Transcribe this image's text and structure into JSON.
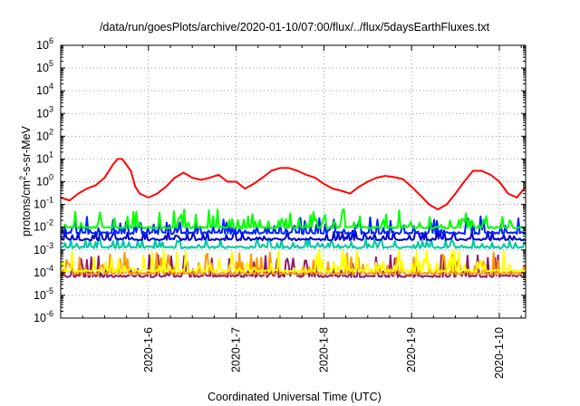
{
  "chart_data": {
    "type": "line",
    "title": "/data/run/goesPlots/archive/2020-01-10/07:00/flux/../flux/5daysEarthFluxes.txt",
    "xlabel": "Coordinated Universal Time (UTC)",
    "ylabel": {
      "prefix": "protons/cm",
      "sup": "2",
      "suffix": "-s-sr-MeV"
    },
    "yscale": "log",
    "ylim_exp": [
      -6,
      6
    ],
    "xlim": [
      0,
      5.3
    ],
    "grid": true,
    "y_ticks": [
      {
        "exp": -6,
        "label_base": "10",
        "label_exp": "-6"
      },
      {
        "exp": -5,
        "label_base": "10",
        "label_exp": "-5"
      },
      {
        "exp": -4,
        "label_base": "10",
        "label_exp": "-4"
      },
      {
        "exp": -3,
        "label_base": "10",
        "label_exp": "-3"
      },
      {
        "exp": -2,
        "label_base": "10",
        "label_exp": "-2"
      },
      {
        "exp": -1,
        "label_base": "10",
        "label_exp": "-1"
      },
      {
        "exp": 0,
        "label_base": "10",
        "label_exp": "0"
      },
      {
        "exp": 1,
        "label_base": "10",
        "label_exp": "1"
      },
      {
        "exp": 2,
        "label_base": "10",
        "label_exp": "2"
      },
      {
        "exp": 3,
        "label_base": "10",
        "label_exp": "3"
      },
      {
        "exp": 4,
        "label_base": "10",
        "label_exp": "4"
      },
      {
        "exp": 5,
        "label_base": "10",
        "label_exp": "5"
      },
      {
        "exp": 6,
        "label_base": "10",
        "label_exp": "6"
      }
    ],
    "x_ticks": [
      {
        "value": 1,
        "label": "2020-1-6"
      },
      {
        "value": 2,
        "label": "2020-1-7"
      },
      {
        "value": 3,
        "label": "2020-1-8"
      },
      {
        "value": 4,
        "label": "2020-1-9"
      },
      {
        "value": 5,
        "label": "2020-1-10"
      }
    ],
    "series": [
      {
        "color": "#ff0000",
        "x": [
          0,
          0.1,
          0.2,
          0.3,
          0.4,
          0.5,
          0.6,
          0.65,
          0.7,
          0.8,
          0.85,
          0.9,
          1.0,
          1.1,
          1.2,
          1.3,
          1.4,
          1.5,
          1.6,
          1.7,
          1.8,
          1.9,
          2.0,
          2.1,
          2.2,
          2.3,
          2.4,
          2.5,
          2.6,
          2.7,
          2.8,
          2.9,
          3.0,
          3.1,
          3.2,
          3.3,
          3.4,
          3.5,
          3.6,
          3.7,
          3.8,
          3.9,
          4.0,
          4.1,
          4.2,
          4.3,
          4.4,
          4.5,
          4.6,
          4.7,
          4.8,
          4.9,
          5.0,
          5.1,
          5.2,
          5.3
        ],
        "y": [
          0.2,
          0.15,
          0.3,
          0.5,
          0.7,
          1.5,
          6,
          10,
          10,
          3,
          0.6,
          0.3,
          0.2,
          0.3,
          0.6,
          1.5,
          2.5,
          1.5,
          1.2,
          1.5,
          2.0,
          1.0,
          1.0,
          0.5,
          0.8,
          1.5,
          3.0,
          4.0,
          4.0,
          3.0,
          2.0,
          1.5,
          0.8,
          0.5,
          0.4,
          0.3,
          0.6,
          1.0,
          1.5,
          1.8,
          1.6,
          1.3,
          0.6,
          0.25,
          0.1,
          0.06,
          0.1,
          0.3,
          1.0,
          3.0,
          3.0,
          2.0,
          1.0,
          0.3,
          0.2,
          0.6
        ]
      },
      {
        "color": "#00ff00",
        "base": 0.0097,
        "spike_max": 0.06,
        "seed": 7
      },
      {
        "color": "#0022ff",
        "base": 0.0055,
        "spike_max": 0.03,
        "seed": 13
      },
      {
        "color": "#0000cc",
        "base": 0.0029,
        "spike_max": 0.007,
        "seed": 21
      },
      {
        "color": "#00c8a0",
        "base": 0.0013,
        "spike_max": 0.003,
        "seed": 29
      },
      {
        "color": "#ffff00",
        "base": 0.00012,
        "spike_max": 0.001,
        "seed": 41
      },
      {
        "color": "#ff9900",
        "base": 9e-05,
        "spike_max": 0.0008,
        "seed": 53
      },
      {
        "color": "#8b1a6e",
        "base": 7e-05,
        "spike_max": 0.0006,
        "seed": 67
      }
    ]
  }
}
